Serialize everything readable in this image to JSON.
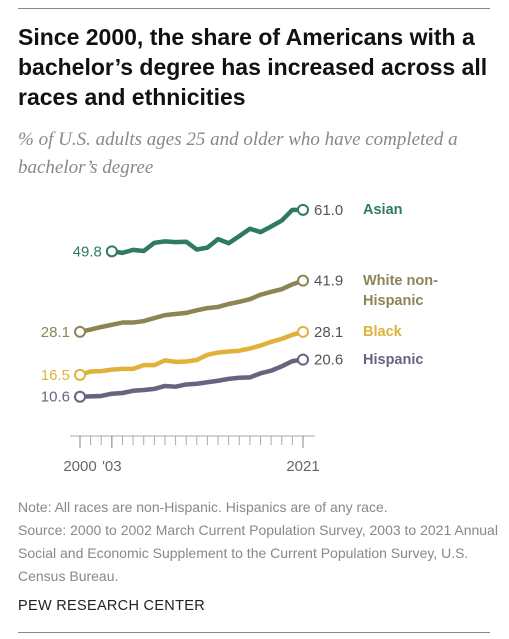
{
  "chart_data": {
    "type": "line",
    "title": "Since 2000, the share of Americans with a bachelor’s degree has increased across all races and ethnicities",
    "subtitle": "% of U.S. adults ages 25 and older who have completed a bachelor’s degree",
    "note": "Note: All races are non-Hispanic. Hispanics are of any race.",
    "source": "Source: 2000 to 2002 March Current Population Survey, 2003 to 2021 Annual Social and Economic Supplement to the Current Population Survey, U.S. Census Bureau.",
    "credit": "PEW RESEARCH CENTER",
    "x": [
      2000,
      2001,
      2002,
      2003,
      2004,
      2005,
      2006,
      2007,
      2008,
      2009,
      2010,
      2011,
      2012,
      2013,
      2014,
      2015,
      2016,
      2017,
      2018,
      2019,
      2020,
      2021
    ],
    "xlim": [
      2000,
      2021
    ],
    "xticks": [
      2000,
      {
        "value": 2003,
        "label": "'03"
      },
      2021
    ],
    "ylim": [
      0,
      65
    ],
    "series": [
      {
        "name": "Asian",
        "color": "#2e7a66",
        "values": [
          null,
          null,
          null,
          49.8,
          49.4,
          50.2,
          49.9,
          52.1,
          52.5,
          52.3,
          52.4,
          50.3,
          50.8,
          53.1,
          52.0,
          53.9,
          55.9,
          55.0,
          56.5,
          58.1,
          61.0,
          61.0
        ],
        "value_labels": [
          null,
          null,
          null,
          "49.8",
          null,
          null,
          null,
          null,
          null,
          null,
          null,
          null,
          null,
          null,
          null,
          null,
          null,
          null,
          null,
          null,
          null,
          "61.0"
        ]
      },
      {
        "name": "White non-Hispanic",
        "color": "#8c8455",
        "values": [
          28.1,
          28.7,
          29.4,
          30.0,
          30.6,
          30.6,
          31.0,
          31.8,
          32.6,
          32.9,
          33.2,
          33.9,
          34.5,
          34.8,
          35.6,
          36.2,
          36.9,
          38.1,
          38.9,
          39.6,
          40.9,
          41.9
        ],
        "value_labels": [
          "28.1",
          null,
          null,
          null,
          null,
          null,
          null,
          null,
          null,
          null,
          null,
          null,
          null,
          null,
          null,
          null,
          null,
          null,
          null,
          null,
          null,
          "41.9"
        ]
      },
      {
        "name": "Black",
        "color": "#e0b23a",
        "values": [
          16.5,
          17.4,
          17.5,
          17.9,
          18.1,
          18.1,
          19.1,
          19.1,
          20.4,
          20.0,
          20.1,
          20.5,
          21.9,
          22.5,
          22.8,
          23.0,
          23.6,
          24.4,
          25.4,
          26.2,
          27.3,
          28.1
        ],
        "value_labels": [
          "16.5",
          null,
          null,
          null,
          null,
          null,
          null,
          null,
          null,
          null,
          null,
          null,
          null,
          null,
          null,
          null,
          null,
          null,
          null,
          null,
          null,
          "28.1"
        ]
      },
      {
        "name": "Hispanic",
        "color": "#6b6280",
        "values": [
          10.6,
          10.7,
          10.8,
          11.4,
          11.6,
          12.2,
          12.4,
          12.7,
          13.5,
          13.3,
          13.9,
          14.1,
          14.5,
          14.9,
          15.4,
          15.7,
          15.8,
          16.9,
          17.6,
          18.8,
          20.2,
          20.6
        ],
        "value_labels": [
          "10.6",
          null,
          null,
          null,
          null,
          null,
          null,
          null,
          null,
          null,
          null,
          null,
          null,
          null,
          null,
          null,
          null,
          null,
          null,
          null,
          null,
          "20.6"
        ]
      }
    ]
  }
}
